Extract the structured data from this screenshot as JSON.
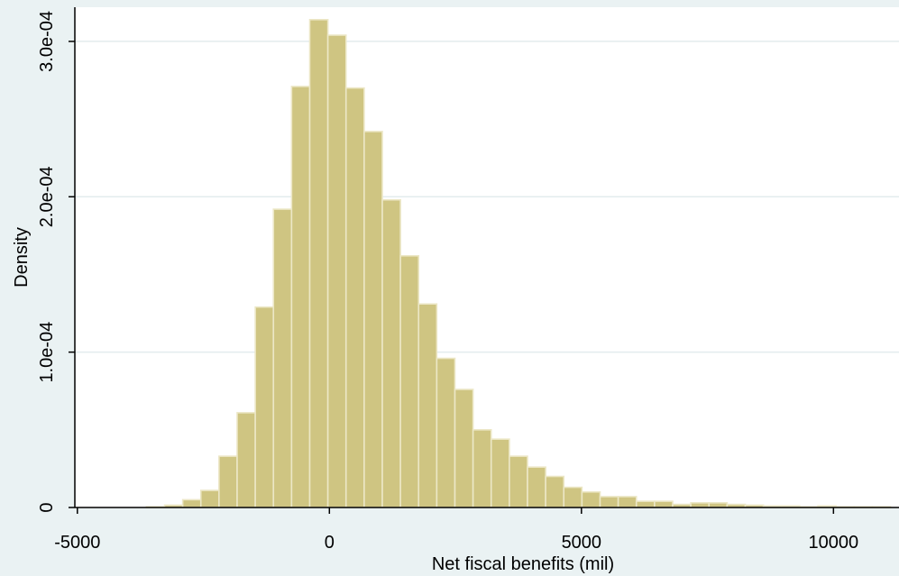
{
  "chart_data": {
    "type": "bar",
    "title": "",
    "xlabel": "Net fiscal benefits (mil)",
    "ylabel": "Density",
    "xlim": [
      -5050,
      11300
    ],
    "ylim": [
      0,
      0.000322
    ],
    "xticks": [
      {
        "value": -5000,
        "label": "-5000"
      },
      {
        "value": 0,
        "label": "0"
      },
      {
        "value": 5000,
        "label": "5000"
      },
      {
        "value": 10000,
        "label": "10000"
      }
    ],
    "yticks": [
      {
        "value": 0,
        "label": "0"
      },
      {
        "value": 0.0001,
        "label": "1.0e-04"
      },
      {
        "value": 0.0002,
        "label": "2.0e-04"
      },
      {
        "value": 0.0003,
        "label": "3.0e-04"
      }
    ],
    "grid": true,
    "colors": {
      "background": "#eaf2f3",
      "plot_area": "#ffffff",
      "bar_fill": "#cfc582",
      "bar_edge": "#ece7c6",
      "grid": "#e3ecee",
      "title": "#1a476f"
    },
    "bins": [
      {
        "x0": -3630,
        "x1": -3270,
        "y": 5e-07
      },
      {
        "x0": -3270,
        "x1": -2910,
        "y": 1.5e-06
      },
      {
        "x0": -2910,
        "x1": -2550,
        "y": 5e-06
      },
      {
        "x0": -2550,
        "x1": -2190,
        "y": 1.1e-05
      },
      {
        "x0": -2190,
        "x1": -1830,
        "y": 3.3e-05
      },
      {
        "x0": -1830,
        "x1": -1470,
        "y": 6.1e-05
      },
      {
        "x0": -1470,
        "x1": -1110,
        "y": 0.000129
      },
      {
        "x0": -1110,
        "x1": -750,
        "y": 0.000192
      },
      {
        "x0": -750,
        "x1": -390,
        "y": 0.000271
      },
      {
        "x0": -390,
        "x1": -30,
        "y": 0.000314
      },
      {
        "x0": -30,
        "x1": 330,
        "y": 0.000304
      },
      {
        "x0": 330,
        "x1": 690,
        "y": 0.00027
      },
      {
        "x0": 690,
        "x1": 1050,
        "y": 0.000242
      },
      {
        "x0": 1050,
        "x1": 1410,
        "y": 0.000198
      },
      {
        "x0": 1410,
        "x1": 1770,
        "y": 0.000162
      },
      {
        "x0": 1770,
        "x1": 2130,
        "y": 0.000131
      },
      {
        "x0": 2130,
        "x1": 2490,
        "y": 9.6e-05
      },
      {
        "x0": 2490,
        "x1": 2850,
        "y": 7.6e-05
      },
      {
        "x0": 2850,
        "x1": 3210,
        "y": 5e-05
      },
      {
        "x0": 3210,
        "x1": 3570,
        "y": 4.4e-05
      },
      {
        "x0": 3570,
        "x1": 3930,
        "y": 3.3e-05
      },
      {
        "x0": 3930,
        "x1": 4290,
        "y": 2.6e-05
      },
      {
        "x0": 4290,
        "x1": 4650,
        "y": 2e-05
      },
      {
        "x0": 4650,
        "x1": 5010,
        "y": 1.3e-05
      },
      {
        "x0": 5010,
        "x1": 5370,
        "y": 1e-05
      },
      {
        "x0": 5370,
        "x1": 5730,
        "y": 7e-06
      },
      {
        "x0": 5730,
        "x1": 6090,
        "y": 7e-06
      },
      {
        "x0": 6090,
        "x1": 6450,
        "y": 4e-06
      },
      {
        "x0": 6450,
        "x1": 6810,
        "y": 4e-06
      },
      {
        "x0": 6810,
        "x1": 7170,
        "y": 2e-06
      },
      {
        "x0": 7170,
        "x1": 7530,
        "y": 3e-06
      },
      {
        "x0": 7530,
        "x1": 7890,
        "y": 3e-06
      },
      {
        "x0": 7890,
        "x1": 8250,
        "y": 2e-06
      },
      {
        "x0": 8250,
        "x1": 8610,
        "y": 1.5e-06
      },
      {
        "x0": 8610,
        "x1": 8970,
        "y": 1e-06
      },
      {
        "x0": 8970,
        "x1": 9330,
        "y": 1e-06
      },
      {
        "x0": 9330,
        "x1": 9690,
        "y": 5e-07
      },
      {
        "x0": 9690,
        "x1": 10050,
        "y": 1e-06
      },
      {
        "x0": 10050,
        "x1": 10410,
        "y": 5e-07
      },
      {
        "x0": 10410,
        "x1": 10770,
        "y": 5e-07
      },
      {
        "x0": 10770,
        "x1": 11130,
        "y": 5e-07
      }
    ]
  }
}
